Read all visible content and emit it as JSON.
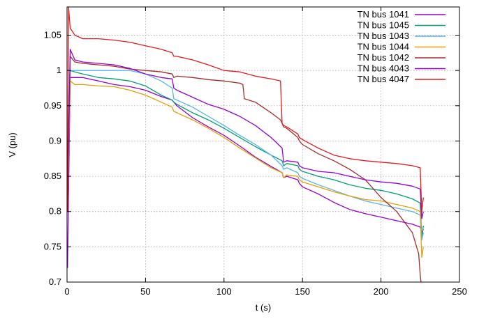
{
  "chart_data": {
    "type": "line",
    "xlabel": "t (s)",
    "ylabel": "V (pu)",
    "xlim": [
      0,
      250
    ],
    "ylim": [
      0.7,
      1.09
    ],
    "xticks": [
      0,
      50,
      100,
      150,
      200,
      250
    ],
    "yticks": [
      0.7,
      0.75,
      0.8,
      0.85,
      0.9,
      0.95,
      1,
      1.05
    ],
    "grid": true,
    "legend": "top-right",
    "series": [
      {
        "name": "TN bus 1041",
        "color": "#9400d3",
        "x": [
          0.3,
          2,
          5,
          10,
          20,
          30,
          40,
          50,
          60,
          67,
          68,
          70,
          80,
          90,
          100,
          110,
          120,
          130,
          137,
          138,
          140,
          147,
          148,
          150,
          160,
          170,
          180,
          190,
          200,
          210,
          220,
          225,
          226,
          227
        ],
        "y": [
          0.72,
          0.99,
          0.99,
          0.99,
          0.985,
          0.98,
          0.977,
          0.972,
          0.963,
          0.958,
          0.955,
          0.95,
          0.933,
          0.92,
          0.908,
          0.893,
          0.877,
          0.864,
          0.855,
          0.848,
          0.85,
          0.845,
          0.84,
          0.835,
          0.825,
          0.813,
          0.803,
          0.797,
          0.792,
          0.787,
          0.782,
          0.778,
          0.77,
          0.775
        ]
      },
      {
        "name": "TN bus 1045",
        "color": "#009e73",
        "x": [
          0.3,
          2,
          5,
          10,
          20,
          30,
          40,
          50,
          60,
          67,
          68,
          70,
          80,
          90,
          100,
          110,
          120,
          130,
          137,
          138,
          140,
          147,
          148,
          150,
          160,
          170,
          180,
          190,
          200,
          210,
          220,
          225,
          226,
          227
        ],
        "y": [
          0.8,
          1.0,
          0.998,
          0.995,
          0.99,
          0.988,
          0.985,
          0.978,
          0.965,
          0.958,
          0.955,
          0.952,
          0.94,
          0.93,
          0.918,
          0.905,
          0.892,
          0.88,
          0.872,
          0.865,
          0.868,
          0.865,
          0.86,
          0.857,
          0.85,
          0.845,
          0.838,
          0.833,
          0.83,
          0.825,
          0.818,
          0.812,
          0.76,
          0.78
        ]
      },
      {
        "name": "TN bus 1043",
        "color": "#56b4e9",
        "x": [
          0.3,
          2,
          5,
          10,
          20,
          30,
          40,
          50,
          60,
          67,
          68,
          70,
          80,
          90,
          100,
          110,
          120,
          130,
          137,
          138,
          140,
          147,
          148,
          150,
          160,
          170,
          180,
          190,
          200,
          210,
          220,
          225,
          226,
          227
        ],
        "y": [
          0.8,
          1.0,
          1.0,
          1.0,
          1.0,
          1.0,
          1.0,
          0.995,
          0.985,
          0.975,
          0.96,
          0.958,
          0.948,
          0.935,
          0.922,
          0.908,
          0.895,
          0.88,
          0.865,
          0.86,
          0.862,
          0.855,
          0.85,
          0.847,
          0.838,
          0.83,
          0.822,
          0.815,
          0.81,
          0.805,
          0.8,
          0.795,
          0.76,
          0.77
        ]
      },
      {
        "name": "TN bus 1044",
        "color": "#e69f00",
        "x": [
          0.3,
          2,
          5,
          10,
          20,
          30,
          40,
          50,
          60,
          67,
          68,
          70,
          80,
          90,
          100,
          110,
          120,
          130,
          137,
          138,
          140,
          147,
          148,
          150,
          160,
          170,
          180,
          190,
          200,
          210,
          220,
          225,
          226,
          227
        ],
        "y": [
          0.8,
          0.985,
          0.98,
          0.98,
          0.978,
          0.977,
          0.972,
          0.965,
          0.955,
          0.948,
          0.942,
          0.94,
          0.93,
          0.918,
          0.905,
          0.89,
          0.876,
          0.862,
          0.855,
          0.848,
          0.852,
          0.85,
          0.845,
          0.842,
          0.835,
          0.828,
          0.822,
          0.817,
          0.815,
          0.81,
          0.805,
          0.8,
          0.735,
          0.75
        ]
      },
      {
        "name": "TN bus 1042",
        "color": "#a52a2a",
        "x": [
          0.3,
          2,
          5,
          10,
          20,
          30,
          40,
          50,
          60,
          67,
          68,
          70,
          80,
          90,
          100,
          110,
          112,
          113,
          120,
          130,
          136,
          137,
          138,
          140,
          147,
          148,
          150,
          160,
          170,
          180,
          190,
          200,
          210,
          220,
          224,
          225,
          226
        ],
        "y": [
          0.8,
          1.02,
          1.012,
          1.01,
          1.008,
          1.006,
          1.002,
          1.0,
          0.998,
          0.995,
          0.99,
          0.992,
          0.99,
          0.987,
          0.985,
          0.982,
          0.98,
          0.96,
          0.955,
          0.94,
          0.93,
          0.925,
          0.92,
          0.918,
          0.905,
          0.9,
          0.895,
          0.882,
          0.872,
          0.86,
          0.845,
          0.82,
          0.8,
          0.77,
          0.74,
          0.71,
          0.69
        ]
      },
      {
        "name": "TN bus 4043",
        "color": "#9400d3",
        "x": [
          0.3,
          2,
          5,
          10,
          20,
          30,
          40,
          50,
          60,
          67,
          68,
          70,
          80,
          90,
          100,
          110,
          120,
          130,
          137,
          138,
          140,
          147,
          148,
          150,
          160,
          170,
          180,
          190,
          200,
          210,
          220,
          225,
          226,
          227
        ],
        "y": [
          0.82,
          1.03,
          1.015,
          1.012,
          1.01,
          1.008,
          1.003,
          0.995,
          0.99,
          0.988,
          0.975,
          0.972,
          0.962,
          0.952,
          0.945,
          0.935,
          0.922,
          0.905,
          0.89,
          0.87,
          0.872,
          0.87,
          0.865,
          0.862,
          0.857,
          0.855,
          0.85,
          0.845,
          0.842,
          0.84,
          0.836,
          0.832,
          0.79,
          0.8
        ]
      },
      {
        "name": "TN bus 4047",
        "color": "#e41a1c",
        "x": [
          0.3,
          1,
          2,
          5,
          10,
          20,
          30,
          40,
          50,
          60,
          67,
          68,
          70,
          80,
          90,
          100,
          110,
          120,
          130,
          136,
          137,
          138,
          140,
          147,
          148,
          150,
          160,
          170,
          180,
          190,
          200,
          210,
          220,
          225,
          226,
          227
        ],
        "y": [
          0.8,
          1.09,
          1.06,
          1.05,
          1.045,
          1.045,
          1.043,
          1.04,
          1.035,
          1.03,
          1.025,
          1.02,
          1.02,
          1.015,
          1.008,
          1.0,
          0.998,
          0.992,
          0.988,
          0.985,
          0.925,
          0.922,
          0.92,
          0.91,
          0.905,
          0.902,
          0.89,
          0.88,
          0.875,
          0.872,
          0.87,
          0.868,
          0.865,
          0.862,
          0.8,
          0.82
        ]
      }
    ]
  }
}
